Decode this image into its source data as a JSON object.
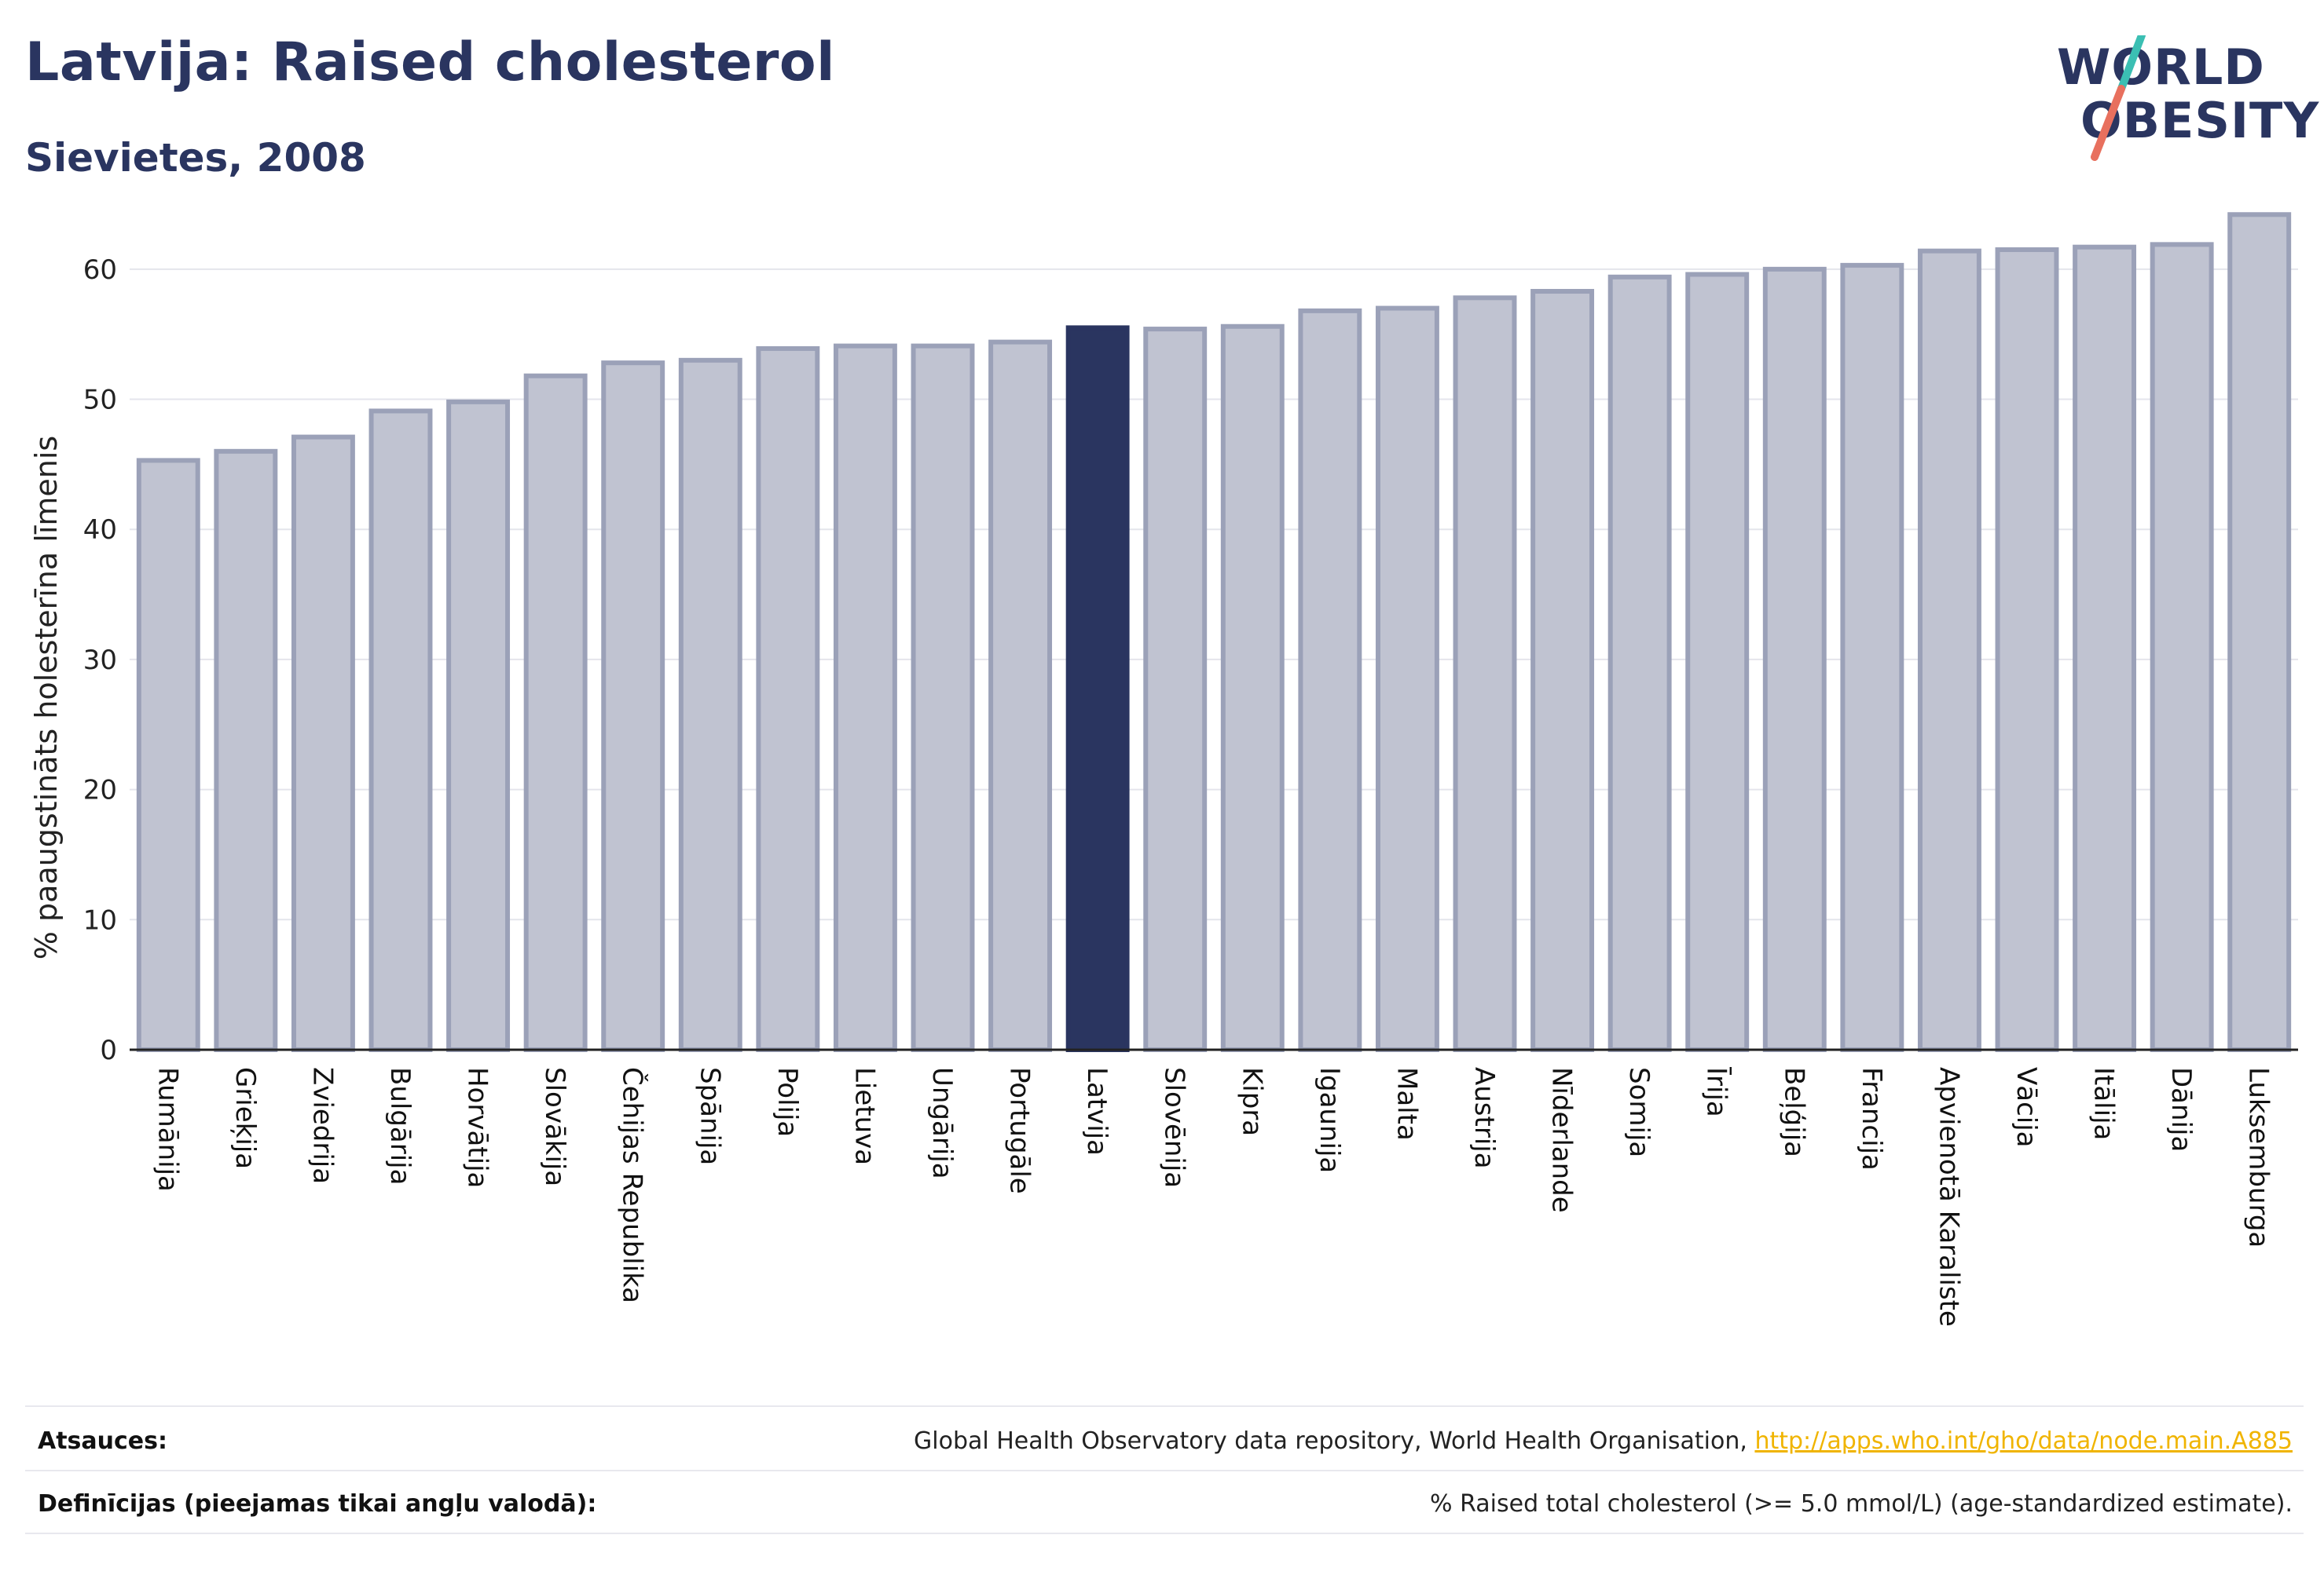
{
  "header": {
    "title": "Latvija: Raised cholesterol",
    "subtitle": "Sievietes, 2008"
  },
  "logo": {
    "line1": "WORLD",
    "line2": "OBESITY",
    "accent_colors": [
      "#3bbfb3",
      "#e8705e"
    ]
  },
  "chart_data": {
    "type": "bar",
    "ylabel": "% paaugstināts holesterīna līmenis",
    "ylim": [
      0,
      65
    ],
    "yticks": [
      0,
      10,
      20,
      30,
      40,
      50,
      60
    ],
    "grid": true,
    "categories": [
      "Rumānija",
      "Grieķija",
      "Zviedrija",
      "Bulgārija",
      "Horvātija",
      "Slovākija",
      "Čehijas Republika",
      "Spānija",
      "Polija",
      "Lietuva",
      "Ungārija",
      "Portugāle",
      "Latvija",
      "Slovēnija",
      "Kipra",
      "Igaunija",
      "Malta",
      "Austrija",
      "Nīderlande",
      "Somija",
      "Īrija",
      "Beļģija",
      "Francija",
      "Apvienotā Karaliste",
      "Vācija",
      "Itālija",
      "Dānija",
      "Luksemburga"
    ],
    "values": [
      45.3,
      46.0,
      47.1,
      49.1,
      49.8,
      51.8,
      52.8,
      53.0,
      53.9,
      54.1,
      54.1,
      54.4,
      55.5,
      55.4,
      55.6,
      56.8,
      57.0,
      57.8,
      58.3,
      59.4,
      59.6,
      60.0,
      60.3,
      61.4,
      61.5,
      61.7,
      61.9,
      64.2
    ],
    "highlight": "Latvija",
    "colors": {
      "bar": "#c0c3d1",
      "bar_edge": "#9ba1b8",
      "highlight": "#2a3560"
    }
  },
  "footer": {
    "sources_label": "Atsauces:",
    "sources_text": "Global Health Observatory data repository, World Health Organisation, ",
    "sources_link": "http://apps.who.int/gho/data/node.main.A885",
    "definitions_label": "Definīcijas (pieejamas tikai angļu valodā):",
    "definitions_text": "% Raised total cholesterol (>= 5.0 mmol/L) (age-standardized estimate)."
  }
}
